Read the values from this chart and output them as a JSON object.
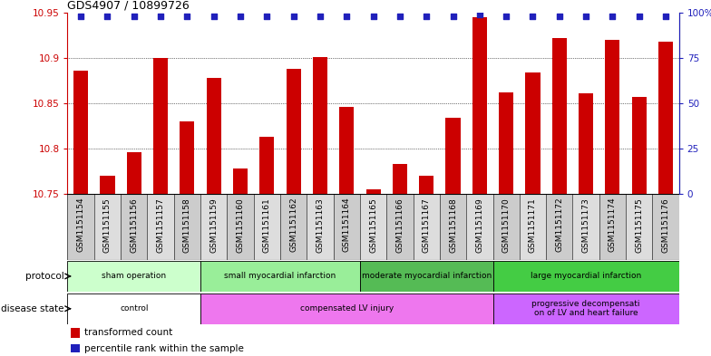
{
  "title": "GDS4907 / 10899726",
  "samples": [
    "GSM1151154",
    "GSM1151155",
    "GSM1151156",
    "GSM1151157",
    "GSM1151158",
    "GSM1151159",
    "GSM1151160",
    "GSM1151161",
    "GSM1151162",
    "GSM1151163",
    "GSM1151164",
    "GSM1151165",
    "GSM1151166",
    "GSM1151167",
    "GSM1151168",
    "GSM1151169",
    "GSM1151170",
    "GSM1151171",
    "GSM1151172",
    "GSM1151173",
    "GSM1151174",
    "GSM1151175",
    "GSM1151176"
  ],
  "bar_values": [
    10.886,
    10.77,
    10.796,
    10.9,
    10.83,
    10.878,
    10.778,
    10.813,
    10.888,
    10.901,
    10.846,
    10.755,
    10.783,
    10.77,
    10.834,
    10.945,
    10.862,
    10.884,
    10.922,
    10.861,
    10.92,
    10.857,
    10.918
  ],
  "percentile_values": [
    98,
    98,
    98,
    98,
    98,
    98,
    98,
    98,
    98,
    98,
    98,
    98,
    98,
    98,
    98,
    99,
    98,
    98,
    98,
    98,
    98,
    98,
    98
  ],
  "ylim_left": [
    10.75,
    10.95
  ],
  "ylim_right": [
    0,
    100
  ],
  "bar_color": "#cc0000",
  "dot_color": "#2020bb",
  "yticks_left": [
    10.75,
    10.8,
    10.85,
    10.9,
    10.95
  ],
  "yticks_right": [
    0,
    25,
    50,
    75,
    100
  ],
  "grid_ticks": [
    10.8,
    10.85,
    10.9
  ],
  "col_bg_even": "#cccccc",
  "col_bg_odd": "#dddddd",
  "protocol_groups": [
    {
      "label": "sham operation",
      "start": 0,
      "end": 5,
      "color": "#ccffcc"
    },
    {
      "label": "small myocardial infarction",
      "start": 5,
      "end": 11,
      "color": "#99ee99"
    },
    {
      "label": "moderate myocardial infarction",
      "start": 11,
      "end": 16,
      "color": "#55bb55"
    },
    {
      "label": "large myocardial infarction",
      "start": 16,
      "end": 23,
      "color": "#44cc44"
    }
  ],
  "disease_groups": [
    {
      "label": "control",
      "start": 0,
      "end": 5,
      "color": "#ffffff"
    },
    {
      "label": "compensated LV injury",
      "start": 5,
      "end": 16,
      "color": "#ee77ee"
    },
    {
      "label": "progressive decompensati\non of LV and heart failure",
      "start": 16,
      "end": 23,
      "color": "#cc66ff"
    }
  ],
  "protocol_label": "protocol",
  "disease_label": "disease state",
  "legend_bar_label": "transformed count",
  "legend_dot_label": "percentile rank within the sample"
}
